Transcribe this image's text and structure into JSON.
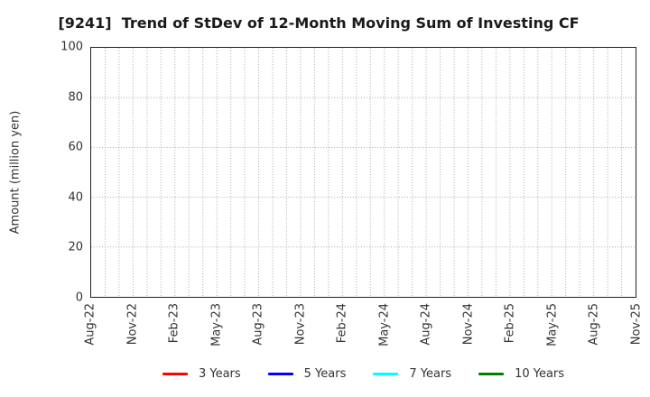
{
  "chart_data": {
    "type": "line",
    "title": "[9241]  Trend of StDev of 12-Month Moving Sum of Investing CF",
    "xlabel": "",
    "ylabel": "Amount (million yen)",
    "ylim": [
      0,
      100
    ],
    "yticks": [
      0,
      20,
      40,
      60,
      80,
      100
    ],
    "x_tick_labels": [
      "Aug-22",
      "Nov-22",
      "Feb-23",
      "May-23",
      "Aug-23",
      "Nov-23",
      "Feb-24",
      "May-24",
      "Aug-24",
      "Nov-24",
      "Feb-25",
      "May-25",
      "Aug-25",
      "Nov-25"
    ],
    "months_total": 40,
    "label_every": 3,
    "grid": "dotted",
    "legend_position": "bottom-center",
    "series": [
      {
        "name": "3 Years",
        "color": "#ff0000",
        "values": []
      },
      {
        "name": "5 Years",
        "color": "#0000ff",
        "values": []
      },
      {
        "name": "7 Years",
        "color": "#00ffff",
        "values": []
      },
      {
        "name": "10 Years",
        "color": "#008000",
        "values": []
      }
    ]
  }
}
